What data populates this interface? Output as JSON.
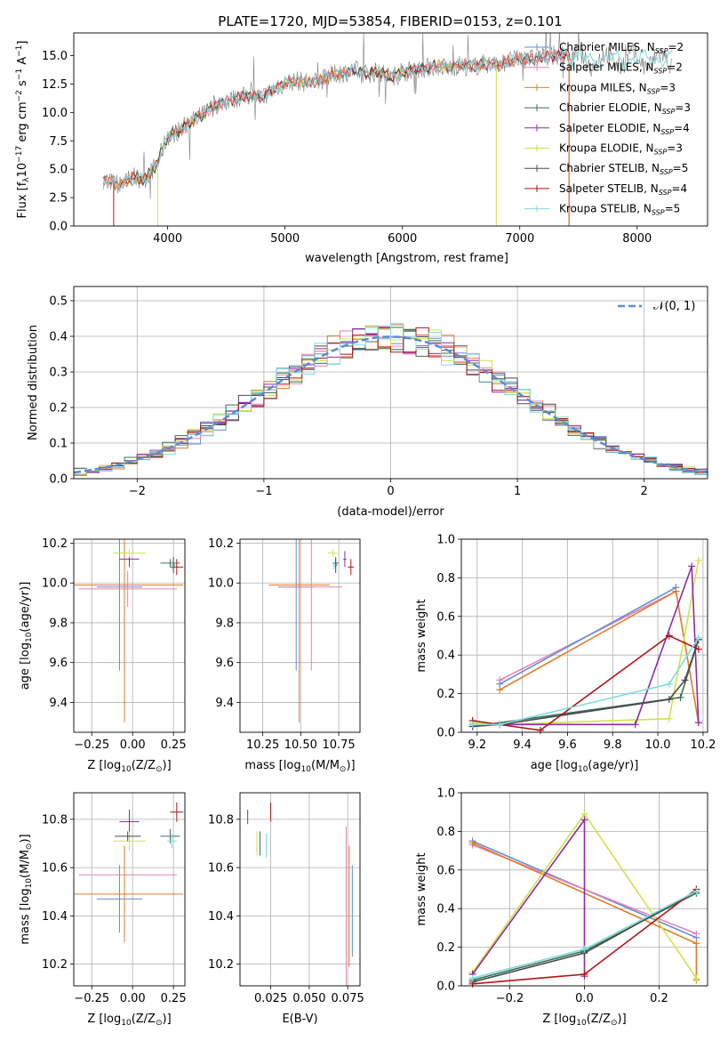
{
  "figure_title": "PLATE=1720, MJD=53854, FIBERID=0153, z=0.101",
  "colors": {
    "chabrier_miles": "#5f8fd6",
    "salpeter_miles": "#e882b4",
    "kroupa_miles": "#e07b2a",
    "chabrier_elodie": "#3f6f58",
    "salpeter_elodie": "#8e2aa6",
    "kroupa_elodie": "#cfe34a",
    "chabrier_stelib": "#4a4a4a",
    "salpeter_stelib": "#b01515",
    "kroupa_stelib": "#80dcdc",
    "data": "#808080",
    "normal": "#5b8ad8",
    "grid": "#b0b0b0"
  },
  "chart_data": [
    {
      "id": "spectrum",
      "type": "line",
      "title": "PLATE=1720, MJD=53854, FIBERID=0153, z=0.101",
      "xlabel": "wavelength [Angstrom, rest frame]",
      "ylabel_main": "Flux [f",
      "ylabel_sub": "λ",
      "ylabel_rest": "10",
      "ylabel_exp1": "−17",
      "ylabel_mid": " erg cm",
      "ylabel_exp2": "−2",
      "ylabel_mid2": " s",
      "ylabel_exp3": "−1",
      "ylabel_mid3": " A",
      "ylabel_exp4": "−1",
      "ylabel_end": "]",
      "xlim": [
        3200,
        8600
      ],
      "ylim": [
        0,
        17
      ],
      "xticks": [
        "4000",
        "5000",
        "6000",
        "7000",
        "8000"
      ],
      "xtick_values": [
        4000,
        5000,
        6000,
        7000,
        8000
      ],
      "yticks": [
        "0.0",
        "2.5",
        "5.0",
        "7.5",
        "10.0",
        "12.5",
        "15.0"
      ],
      "ytick_values": [
        0,
        2.5,
        5,
        7.5,
        10,
        12.5,
        15
      ],
      "grid": false,
      "legend_position": "top-right",
      "continuum": {
        "x": [
          3450,
          3500,
          3600,
          3700,
          3800,
          3900,
          4000,
          4100,
          4200,
          4300,
          4400,
          4500,
          4600,
          4700,
          4800,
          4900,
          5000,
          5100,
          5200,
          5300,
          5400,
          5500,
          5600,
          5700,
          5800,
          5900,
          6000,
          6100,
          6200,
          6300,
          6400,
          6500,
          6600,
          6700,
          6800,
          6900,
          7000,
          7100,
          7200,
          7300,
          7400
        ],
        "y": [
          4.1,
          3.9,
          3.6,
          4.3,
          4.1,
          5.3,
          7.9,
          8.4,
          9.2,
          9.8,
          10.6,
          11.0,
          11.3,
          11.5,
          11.3,
          12.0,
          12.6,
          12.8,
          12.6,
          12.8,
          13.3,
          13.5,
          13.7,
          13.4,
          13.6,
          13.1,
          13.5,
          13.8,
          13.9,
          14.1,
          13.9,
          14.2,
          14.0,
          14.3,
          14.2,
          14.5,
          14.7,
          14.7,
          14.9,
          15.0,
          15.1
        ]
      },
      "legend": [
        {
          "label": "Chabrier MILES, N",
          "sub": "SSP",
          "value": "=2",
          "color_key": "chabrier_miles"
        },
        {
          "label": "Salpeter MILES, N",
          "sub": "SSP",
          "value": "=2",
          "color_key": "salpeter_miles"
        },
        {
          "label": "Kroupa MILES, N",
          "sub": "SSP",
          "value": "=3",
          "color_key": "kroupa_miles"
        },
        {
          "label": "Chabrier ELODIE, N",
          "sub": "SSP",
          "value": "=3",
          "color_key": "chabrier_elodie"
        },
        {
          "label": "Salpeter ELODIE, N",
          "sub": "SSP",
          "value": "=4",
          "color_key": "salpeter_elodie"
        },
        {
          "label": "Kroupa ELODIE, N",
          "sub": "SSP",
          "value": "=3",
          "color_key": "kroupa_elodie"
        },
        {
          "label": "Chabrier STELIB, N",
          "sub": "SSP",
          "value": "=5",
          "color_key": "chabrier_stelib"
        },
        {
          "label": "Salpeter STELIB, N",
          "sub": "SSP",
          "value": "=4",
          "color_key": "salpeter_stelib"
        },
        {
          "label": "Kroupa STELIB, N",
          "sub": "SSP",
          "value": "=5",
          "color_key": "kroupa_stelib"
        }
      ]
    },
    {
      "id": "residuals",
      "type": "line",
      "xlabel": "(data-model)/error",
      "ylabel": "Normed distribution",
      "xlim": [
        -2.5,
        2.5
      ],
      "ylim": [
        0,
        0.54
      ],
      "xticks": [
        "−2",
        "−1",
        "0",
        "1",
        "2"
      ],
      "xtick_values": [
        -2,
        -1,
        0,
        1,
        2
      ],
      "yticks": [
        "0.0",
        "0.1",
        "0.2",
        "0.3",
        "0.4",
        "0.5"
      ],
      "ytick_values": [
        0,
        0.1,
        0.2,
        0.3,
        0.4,
        0.5
      ],
      "grid": true,
      "legend_position": "top-right",
      "legend_label": "𝒩(0, 1)",
      "bin_width": 0.1,
      "histogram_colors": [
        "chabrier_miles",
        "salpeter_miles",
        "kroupa_miles",
        "chabrier_elodie",
        "salpeter_elodie",
        "kroupa_elodie",
        "chabrier_stelib",
        "salpeter_stelib",
        "kroupa_stelib"
      ]
    },
    {
      "id": "age_vs_Z",
      "type": "scatter",
      "xlabel": "Z [log",
      "xlabel_sub": "10",
      "xlabel_end": "(Z/Z",
      "xlabel_sun": "⊙",
      "xlabel_close": ")]",
      "ylabel": "age  [log",
      "ylabel_sub": "10",
      "ylabel_end": "(age/yr)]",
      "xlim": [
        -0.36,
        0.32
      ],
      "ylim": [
        9.25,
        10.22
      ],
      "xticks": [
        "−0.25",
        "0.00",
        "0.25"
      ],
      "xtick_values": [
        -0.25,
        0,
        0.25
      ],
      "yticks": [
        "9.4",
        "9.6",
        "9.8",
        "10.0",
        "10.2"
      ],
      "ytick_values": [
        9.4,
        9.6,
        9.8,
        10.0,
        10.2
      ],
      "grid": true,
      "points": [
        {
          "x": -0.08,
          "xerr": 0.14,
          "y": 9.98,
          "yerr": 0.42,
          "c": "chabrier_miles"
        },
        {
          "x": -0.03,
          "xerr": 0.3,
          "y": 9.97,
          "yerr": 0.09,
          "c": "salpeter_miles"
        },
        {
          "x": -0.05,
          "xerr": 0.36,
          "y": 9.99,
          "yerr": 0.69,
          "c": "kroupa_miles"
        },
        {
          "x": 0.23,
          "xerr": 0.06,
          "y": 10.1,
          "yerr": 0.02,
          "c": "chabrier_elodie"
        },
        {
          "x": -0.02,
          "xerr": 0.06,
          "y": 10.12,
          "yerr": 0.04,
          "c": "salpeter_elodie"
        },
        {
          "x": -0.02,
          "xerr": 0.1,
          "y": 10.15,
          "yerr": 0.02,
          "c": "kroupa_elodie"
        },
        {
          "x": 0.25,
          "xerr": 0.01,
          "y": 10.09,
          "yerr": 0.04,
          "c": "chabrier_stelib"
        },
        {
          "x": 0.27,
          "xerr": 0.04,
          "y": 10.08,
          "yerr": 0.04,
          "c": "salpeter_stelib"
        },
        {
          "x": 0.24,
          "xerr": 0.01,
          "y": 10.09,
          "yerr": 0.02,
          "c": "kroupa_stelib"
        }
      ]
    },
    {
      "id": "age_vs_mass",
      "type": "scatter",
      "xlabel": "mass [log",
      "xlabel_sub": "10",
      "xlabel_end": "(M/M",
      "xlabel_sun": "⊙",
      "xlabel_close": ")]",
      "xlim": [
        10.1,
        10.89
      ],
      "ylim": [
        9.25,
        10.22
      ],
      "xticks": [
        "10.25",
        "10.50",
        "10.75"
      ],
      "xtick_values": [
        10.25,
        10.5,
        10.75
      ],
      "yticks": [
        "9.4",
        "9.6",
        "9.8",
        "10.0",
        "10.2"
      ],
      "ytick_values": [
        9.4,
        9.6,
        9.8,
        10.0,
        10.2
      ],
      "grid": true,
      "points": [
        {
          "x": 10.47,
          "xerr": 0.12,
          "y": 9.98,
          "yerr": 0.42,
          "c": "chabrier_miles"
        },
        {
          "x": 10.57,
          "xerr": 0.2,
          "y": 9.98,
          "yerr": 0.42,
          "c": "salpeter_miles"
        },
        {
          "x": 10.49,
          "xerr": 0.2,
          "y": 9.99,
          "yerr": 0.69,
          "c": "kroupa_miles"
        },
        {
          "x": 10.73,
          "xerr": 0.02,
          "y": 10.1,
          "yerr": 0.02,
          "c": "chabrier_elodie"
        },
        {
          "x": 10.79,
          "xerr": 0.01,
          "y": 10.12,
          "yerr": 0.04,
          "c": "salpeter_elodie"
        },
        {
          "x": 10.71,
          "xerr": 0.03,
          "y": 10.15,
          "yerr": 0.02,
          "c": "kroupa_elodie"
        },
        {
          "x": 10.73,
          "xerr": 0.01,
          "y": 10.09,
          "yerr": 0.04,
          "c": "chabrier_stelib"
        },
        {
          "x": 10.83,
          "xerr": 0.02,
          "y": 10.08,
          "yerr": 0.04,
          "c": "salpeter_stelib"
        },
        {
          "x": 10.72,
          "xerr": 0.01,
          "y": 10.09,
          "yerr": 0.02,
          "c": "kroupa_stelib"
        }
      ]
    },
    {
      "id": "weight_vs_age",
      "type": "line",
      "xlabel": "age  [log",
      "xlabel_sub": "10",
      "xlabel_end": "(age/yr)]",
      "ylabel": "mass weight",
      "xlim": [
        9.13,
        10.22
      ],
      "ylim": [
        0,
        1
      ],
      "xticks": [
        "9.2",
        "9.4",
        "9.6",
        "9.8",
        "10.0",
        "10.2"
      ],
      "xtick_values": [
        9.2,
        9.4,
        9.6,
        9.8,
        10.0,
        10.2
      ],
      "yticks": [
        "0.0",
        "0.2",
        "0.4",
        "0.6",
        "0.8",
        "1.0"
      ],
      "ytick_values": [
        0,
        0.2,
        0.4,
        0.6,
        0.8,
        1.0
      ],
      "grid": true,
      "series": [
        {
          "c": "salpeter_miles",
          "x": [
            9.3,
            10.08
          ],
          "y": [
            0.27,
            0.73
          ]
        },
        {
          "c": "chabrier_miles",
          "x": [
            9.3,
            10.08
          ],
          "y": [
            0.25,
            0.75
          ]
        },
        {
          "c": "kroupa_miles",
          "x": [
            9.3,
            10.08,
            10.18
          ],
          "y": [
            0.22,
            0.73,
            0.05
          ]
        },
        {
          "c": "kroupa_elodie",
          "x": [
            9.18,
            9.3,
            10.05,
            10.18
          ],
          "y": [
            0.05,
            0.04,
            0.07,
            0.89
          ]
        },
        {
          "c": "salpeter_elodie",
          "x": [
            9.18,
            9.9,
            10.15,
            10.18
          ],
          "y": [
            0.04,
            0.04,
            0.86,
            0.05
          ]
        },
        {
          "c": "chabrier_elodie",
          "x": [
            9.18,
            10.1,
            10.18
          ],
          "y": [
            0.03,
            0.18,
            0.48
          ]
        },
        {
          "c": "chabrier_stelib",
          "x": [
            9.18,
            9.3,
            10.05,
            10.12,
            10.18
          ],
          "y": [
            0.03,
            0.04,
            0.17,
            0.27,
            0.48
          ]
        },
        {
          "c": "salpeter_stelib",
          "x": [
            9.18,
            9.48,
            10.05,
            10.18
          ],
          "y": [
            0.06,
            0.01,
            0.5,
            0.43
          ]
        },
        {
          "c": "kroupa_stelib",
          "x": [
            9.18,
            9.3,
            10.05,
            10.18
          ],
          "y": [
            0.04,
            0.04,
            0.25,
            0.49
          ]
        }
      ]
    },
    {
      "id": "mass_vs_Z",
      "type": "scatter",
      "xlabel": "Z [log",
      "xlabel_sub": "10",
      "xlabel_end": "(Z/Z",
      "xlabel_sun": "⊙",
      "xlabel_close": ")]",
      "ylabel": "mass [log",
      "ylabel_sub": "10",
      "ylabel_end": "(M/M",
      "ylabel_sun": "⊙",
      "ylabel_close": ")]",
      "xlim": [
        -0.36,
        0.32
      ],
      "ylim": [
        10.11,
        10.91
      ],
      "xticks": [
        "−0.25",
        "0.00",
        "0.25"
      ],
      "xtick_values": [
        -0.25,
        0,
        0.25
      ],
      "yticks": [
        "10.2",
        "10.4",
        "10.6",
        "10.8"
      ],
      "ytick_values": [
        10.2,
        10.4,
        10.6,
        10.8
      ],
      "grid": true,
      "points": [
        {
          "x": -0.08,
          "xerr": 0.14,
          "y": 10.47,
          "yerr": 0.14,
          "c": "chabrier_miles"
        },
        {
          "x": -0.03,
          "xerr": 0.3,
          "y": 10.57,
          "yerr": 0.0,
          "c": "salpeter_miles"
        },
        {
          "x": -0.05,
          "xerr": 0.36,
          "y": 10.49,
          "yerr": 0.2,
          "c": "kroupa_miles"
        },
        {
          "x": 0.23,
          "xerr": 0.06,
          "y": 10.73,
          "yerr": 0.03,
          "c": "chabrier_elodie"
        },
        {
          "x": -0.02,
          "xerr": 0.06,
          "y": 10.79,
          "yerr": 0.05,
          "c": "salpeter_elodie"
        },
        {
          "x": -0.02,
          "xerr": 0.1,
          "y": 10.71,
          "yerr": 0.04,
          "c": "kroupa_elodie"
        },
        {
          "x": -0.03,
          "xerr": 0.08,
          "y": 10.73,
          "yerr": 0.02,
          "c": "chabrier_stelib"
        },
        {
          "x": 0.27,
          "xerr": 0.04,
          "y": 10.83,
          "yerr": 0.04,
          "c": "salpeter_stelib"
        },
        {
          "x": 0.24,
          "xerr": 0.03,
          "y": 10.71,
          "yerr": 0.03,
          "c": "kroupa_stelib"
        }
      ]
    },
    {
      "id": "mass_vs_EBV",
      "type": "scatter",
      "xlabel": "E(B-V)",
      "xlim": [
        0.005,
        0.083
      ],
      "ylim": [
        10.11,
        10.91
      ],
      "xticks": [
        "0.025",
        "0.050",
        "0.075"
      ],
      "xtick_values": [
        0.025,
        0.05,
        0.075
      ],
      "yticks": [
        "10.2",
        "10.4",
        "10.6",
        "10.8"
      ],
      "ytick_values": [
        10.2,
        10.4,
        10.6,
        10.8
      ],
      "grid": true,
      "points": [
        {
          "x": 0.078,
          "xerr": 0,
          "y": 10.42,
          "yerr": 0.19,
          "c": "chabrier_miles"
        },
        {
          "x": 0.074,
          "xerr": 0,
          "y": 10.43,
          "yerr": 0.34,
          "c": "salpeter_miles"
        },
        {
          "x": 0.076,
          "xerr": 0,
          "y": 10.44,
          "yerr": 0.25,
          "c": "kroupa_miles"
        },
        {
          "x": 0.01,
          "xerr": 0,
          "y": 10.81,
          "yerr": 0.03,
          "c": "salpeter_elodie"
        },
        {
          "x": 0.016,
          "xerr": 0,
          "y": 10.7,
          "yerr": 0.05,
          "c": "kroupa_elodie"
        },
        {
          "x": 0.018,
          "xerr": 0,
          "y": 10.7,
          "yerr": 0.05,
          "c": "chabrier_elodie"
        },
        {
          "x": 0.025,
          "xerr": 0,
          "y": 10.83,
          "yerr": 0.04,
          "c": "salpeter_stelib"
        },
        {
          "x": 0.022,
          "xerr": 0,
          "y": 10.69,
          "yerr": 0.05,
          "c": "kroupa_stelib"
        }
      ]
    },
    {
      "id": "weight_vs_Z",
      "type": "line",
      "xlabel": "Z [log",
      "xlabel_sub": "10",
      "xlabel_end": "(Z/Z",
      "xlabel_sun": "⊙",
      "xlabel_close": ")]",
      "ylabel": "mass weight",
      "xlim": [
        -0.33,
        0.33
      ],
      "ylim": [
        0,
        1
      ],
      "xticks": [
        "−0.2",
        "0.0",
        "0.2"
      ],
      "xtick_values": [
        -0.2,
        0,
        0.2
      ],
      "yticks": [
        "0.0",
        "0.2",
        "0.4",
        "0.6",
        "0.8",
        "1.0"
      ],
      "ytick_values": [
        0,
        0.2,
        0.4,
        0.6,
        0.8,
        1.0
      ],
      "grid": true,
      "series": [
        {
          "c": "chabrier_miles",
          "x": [
            -0.3,
            0.3
          ],
          "y": [
            0.75,
            0.25
          ]
        },
        {
          "c": "salpeter_miles",
          "x": [
            -0.3,
            0.3
          ],
          "y": [
            0.73,
            0.27
          ]
        },
        {
          "c": "kroupa_miles",
          "x": [
            -0.3,
            0.3,
            0.3
          ],
          "y": [
            0.74,
            0.22,
            0.03
          ]
        },
        {
          "c": "kroupa_elodie",
          "x": [
            -0.3,
            0,
            0.3
          ],
          "y": [
            0.07,
            0.89,
            0.04
          ]
        },
        {
          "c": "salpeter_elodie",
          "x": [
            -0.3,
            0,
            0
          ],
          "y": [
            0.06,
            0.86,
            0.05
          ]
        },
        {
          "c": "chabrier_elodie",
          "x": [
            -0.3,
            0,
            0.3
          ],
          "y": [
            0.03,
            0.18,
            0.48
          ]
        },
        {
          "c": "chabrier_stelib",
          "x": [
            -0.3,
            0,
            0.3
          ],
          "y": [
            0.02,
            0.17,
            0.49
          ]
        },
        {
          "c": "salpeter_stelib",
          "x": [
            -0.3,
            0,
            0.3
          ],
          "y": [
            0.01,
            0.06,
            0.5
          ]
        },
        {
          "c": "kroupa_stelib",
          "x": [
            -0.3,
            0,
            0.3
          ],
          "y": [
            0.04,
            0.19,
            0.49
          ]
        }
      ]
    }
  ]
}
